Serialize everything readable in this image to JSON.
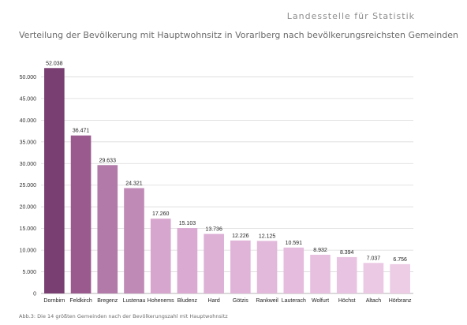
{
  "header": {
    "source": "Landesstelle für Statistik"
  },
  "chart_data": {
    "type": "bar",
    "title": "Verteilung der Bevölkerung mit Hauptwohnsitz in Vorarlberg nach bevölkerungsreichsten Gemeinden",
    "caption": "Abb.3: Die 14 größten Gemeinden nach der Bevölkerungszahl mit Hauptwohnsitz",
    "categories": [
      "Dornbirn",
      "Feldkirch",
      "Bregenz",
      "Lustenau",
      "Hohenems",
      "Bludenz",
      "Hard",
      "Götzis",
      "Rankweil",
      "Lauterach",
      "Wolfurt",
      "Höchst",
      "Altach",
      "Hörbranz"
    ],
    "values": [
      52038,
      36471,
      29633,
      24321,
      17260,
      15103,
      13736,
      12226,
      12125,
      10591,
      8932,
      8394,
      7037,
      6756
    ],
    "value_labels": [
      "52.038",
      "36.471",
      "29.633",
      "24.321",
      "17.260",
      "15.103",
      "13.736",
      "12.226",
      "12.125",
      "10.591",
      "8.932",
      "8.394",
      "7.037",
      "6.756"
    ],
    "yticks": [
      0,
      5000,
      10000,
      15000,
      20000,
      25000,
      30000,
      35000,
      40000,
      45000,
      50000
    ],
    "ytick_labels": [
      "0",
      "5.000",
      "10.000",
      "15.000",
      "20.000",
      "25.000",
      "30.000",
      "35.000",
      "40.000",
      "45.000",
      "50.000"
    ],
    "ylim": [
      0,
      55000
    ],
    "grid": true,
    "xlabel": "",
    "ylabel": "",
    "colors": [
      "#7a3f72",
      "#9a5a8e",
      "#b27aa8",
      "#c08ab6",
      "#d7a6ce",
      "#daaad2",
      "#ddb0d6",
      "#e0b4d9",
      "#e2b8db",
      "#e5bcde",
      "#e7c0e0",
      "#e9c4e2",
      "#ebc8e4",
      "#edcce6"
    ]
  }
}
